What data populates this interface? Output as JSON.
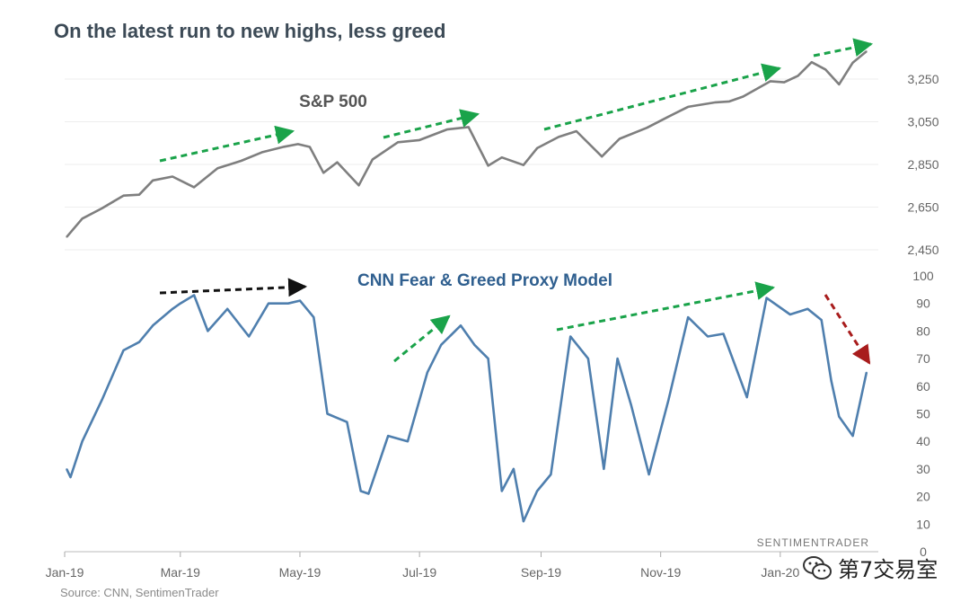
{
  "title": "On the latest run to new highs, less greed",
  "source": "Source: CNN, SentimenTrader",
  "brand": "SENTIMENTRADER",
  "overlay_account": "第7交易室",
  "colors": {
    "sp500_line": "#7f7f7f",
    "fear_greed_line": "#4f7fae",
    "up_arrow": "#1aa34a",
    "flat_arrow": "#111111",
    "down_arrow": "#a81c1c",
    "sp500_label": "#555555",
    "fear_greed_label": "#2f5f8f"
  },
  "chart_data": [
    {
      "type": "line",
      "label": "S&P 500",
      "y_ticks": [
        "2,450",
        "2,650",
        "2,850",
        "3,050",
        "3,250"
      ],
      "ylim": [
        2450,
        3350
      ],
      "x_ticks": [
        "Jan-19",
        "Mar-19",
        "May-19",
        "Jul-19",
        "Sep-19",
        "Nov-19",
        "Jan-20"
      ],
      "series": [
        {
          "x": [
            "2019-01-02",
            "2019-01-10",
            "2019-01-20",
            "2019-01-31",
            "2019-02-08",
            "2019-02-15",
            "2019-02-25",
            "2019-03-08",
            "2019-03-20",
            "2019-04-01",
            "2019-04-12",
            "2019-04-23",
            "2019-04-30",
            "2019-05-06",
            "2019-05-13",
            "2019-05-20",
            "2019-05-31",
            "2019-06-07",
            "2019-06-20",
            "2019-07-01",
            "2019-07-15",
            "2019-07-26",
            "2019-08-05",
            "2019-08-12",
            "2019-08-23",
            "2019-08-30",
            "2019-09-10",
            "2019-09-19",
            "2019-10-02",
            "2019-10-11",
            "2019-10-25",
            "2019-11-05",
            "2019-11-15",
            "2019-11-29",
            "2019-12-06",
            "2019-12-13",
            "2019-12-27",
            "2020-01-03",
            "2020-01-10",
            "2020-01-17",
            "2020-01-24",
            "2020-01-31",
            "2020-02-07",
            "2020-02-14"
          ],
          "y": [
            2510,
            2596,
            2644,
            2704,
            2708,
            2775,
            2793,
            2743,
            2832,
            2867,
            2908,
            2933,
            2945,
            2932,
            2811,
            2860,
            2752,
            2873,
            2954,
            2964,
            3014,
            3025,
            2844,
            2883,
            2847,
            2926,
            2979,
            3006,
            2887,
            2970,
            3022,
            3074,
            3120,
            3141,
            3145,
            3168,
            3240,
            3235,
            3265,
            3329,
            3295,
            3225,
            3327,
            3380
          ]
        }
      ]
    },
    {
      "type": "line",
      "label": "CNN Fear & Greed Proxy Model",
      "y_ticks": [
        "0",
        "10",
        "20",
        "30",
        "40",
        "50",
        "60",
        "70",
        "80",
        "90",
        "100"
      ],
      "ylim": [
        0,
        100
      ],
      "x_ticks": [
        "Jan-19",
        "Mar-19",
        "May-19",
        "Jul-19",
        "Sep-19",
        "Nov-19",
        "Jan-20"
      ],
      "series": [
        {
          "x": [
            "2019-01-02",
            "2019-01-04",
            "2019-01-10",
            "2019-01-20",
            "2019-01-31",
            "2019-02-08",
            "2019-02-15",
            "2019-02-25",
            "2019-03-01",
            "2019-03-08",
            "2019-03-15",
            "2019-03-25",
            "2019-04-05",
            "2019-04-15",
            "2019-04-25",
            "2019-05-01",
            "2019-05-08",
            "2019-05-15",
            "2019-05-25",
            "2019-06-01",
            "2019-06-05",
            "2019-06-15",
            "2019-06-25",
            "2019-07-05",
            "2019-07-12",
            "2019-07-22",
            "2019-07-29",
            "2019-08-05",
            "2019-08-12",
            "2019-08-18",
            "2019-08-23",
            "2019-08-30",
            "2019-09-06",
            "2019-09-16",
            "2019-09-25",
            "2019-10-03",
            "2019-10-10",
            "2019-10-17",
            "2019-10-26",
            "2019-11-05",
            "2019-11-15",
            "2019-11-25",
            "2019-12-03",
            "2019-12-15",
            "2019-12-25",
            "2020-01-06",
            "2020-01-15",
            "2020-01-22",
            "2020-01-27",
            "2020-01-31",
            "2020-02-07",
            "2020-02-14"
          ],
          "y": [
            30,
            27,
            40,
            55,
            73,
            76,
            82,
            88,
            90,
            93,
            80,
            88,
            78,
            90,
            90,
            91,
            85,
            50,
            47,
            22,
            21,
            42,
            40,
            65,
            75,
            82,
            75,
            70,
            22,
            30,
            11,
            22,
            28,
            78,
            70,
            30,
            70,
            53,
            28,
            55,
            85,
            78,
            79,
            56,
            92,
            86,
            88,
            84,
            62,
            49,
            42,
            65
          ]
        }
      ]
    }
  ]
}
